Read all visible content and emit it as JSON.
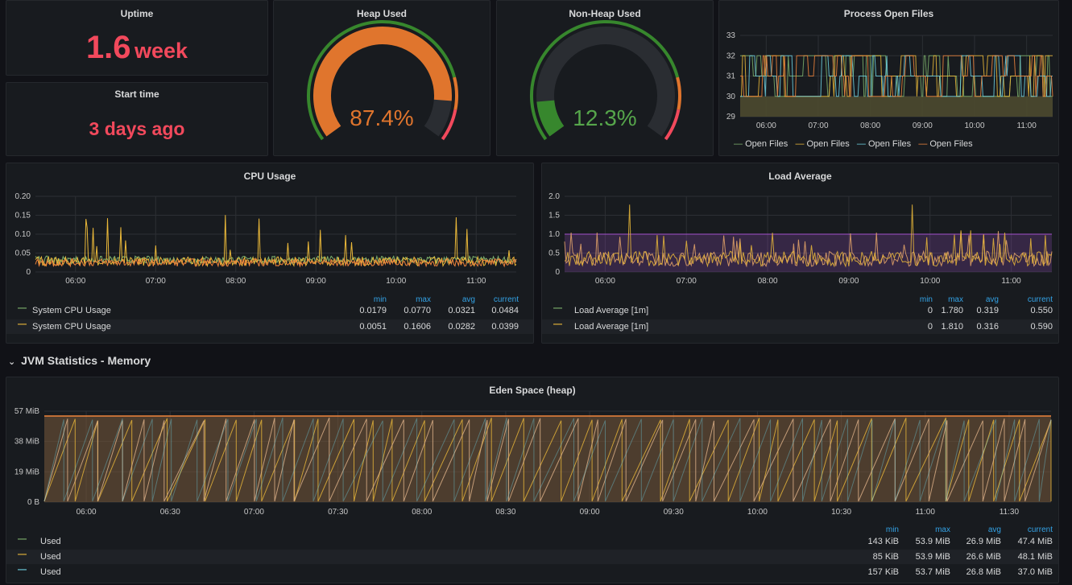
{
  "uptime": {
    "title": "Uptime",
    "value": "1.6",
    "unit": "week"
  },
  "start_time": {
    "title": "Start time",
    "value": "3 days ago"
  },
  "heap_used": {
    "title": "Heap Used",
    "value": "87.4%",
    "fraction": 0.874
  },
  "non_heap_used": {
    "title": "Non-Heap Used",
    "value": "12.3%",
    "fraction": 0.123
  },
  "open_files": {
    "title": "Process Open Files",
    "y_ticks": [
      "33",
      "32",
      "31",
      "30",
      "29"
    ],
    "x_ticks": [
      "06:00",
      "07:00",
      "08:00",
      "09:00",
      "10:00",
      "11:00"
    ],
    "legend": [
      "Open Files",
      "Open Files",
      "Open Files",
      "Open Files"
    ]
  },
  "cpu": {
    "title": "CPU Usage",
    "y_ticks": [
      "0.20",
      "0.15",
      "0.10",
      "0.05",
      "0"
    ],
    "x_ticks": [
      "06:00",
      "07:00",
      "08:00",
      "09:00",
      "10:00",
      "11:00"
    ],
    "headers": [
      "min",
      "max",
      "avg",
      "current"
    ],
    "rows": [
      {
        "name": "System CPU Usage",
        "min": "0.0179",
        "max": "0.0770",
        "avg": "0.0321",
        "current": "0.0484"
      },
      {
        "name": "System CPU Usage",
        "min": "0.0051",
        "max": "0.1606",
        "avg": "0.0282",
        "current": "0.0399"
      }
    ]
  },
  "load": {
    "title": "Load Average",
    "y_ticks": [
      "2.0",
      "1.5",
      "1.0",
      "0.5",
      "0"
    ],
    "x_ticks": [
      "06:00",
      "07:00",
      "08:00",
      "09:00",
      "10:00",
      "11:00"
    ],
    "headers": [
      "min",
      "max",
      "avg",
      "current"
    ],
    "rows": [
      {
        "name": "Load Average [1m]",
        "min": "0",
        "max": "1.780",
        "avg": "0.319",
        "current": "0.550"
      },
      {
        "name": "Load Average [1m]",
        "min": "0",
        "max": "1.810",
        "avg": "0.316",
        "current": "0.590"
      }
    ]
  },
  "section": {
    "title": "JVM Statistics - Memory",
    "chevron": "chevron-down-icon"
  },
  "eden": {
    "title": "Eden Space (heap)",
    "y_ticks": [
      "57 MiB",
      "38 MiB",
      "19 MiB",
      "0 B"
    ],
    "x_ticks": [
      "06:00",
      "06:30",
      "07:00",
      "07:30",
      "08:00",
      "08:30",
      "09:00",
      "09:30",
      "10:00",
      "10:30",
      "11:00",
      "11:30"
    ],
    "headers": [
      "min",
      "max",
      "avg",
      "current"
    ],
    "rows": [
      {
        "name": "Used",
        "min": "143 KiB",
        "max": "53.9 MiB",
        "avg": "26.9 MiB",
        "current": "47.4 MiB"
      },
      {
        "name": "Used",
        "min": "85 KiB",
        "max": "53.9 MiB",
        "avg": "26.6 MiB",
        "current": "48.1 MiB"
      },
      {
        "name": "Used",
        "min": "157 KiB",
        "max": "53.7 MiB",
        "avg": "26.8 MiB",
        "current": "37.0 MiB"
      }
    ]
  },
  "colors": {
    "red": "#f2495c",
    "orange": "#e0752d",
    "green": "#37872d",
    "bright_green": "#56a64b",
    "yellow": "#f2cc0c",
    "light_yellow": "#eab839",
    "teal": "#6ed0e0",
    "purple": "#a352cc",
    "blue": "#33a2e5",
    "series_green": "#7eb26d"
  }
}
